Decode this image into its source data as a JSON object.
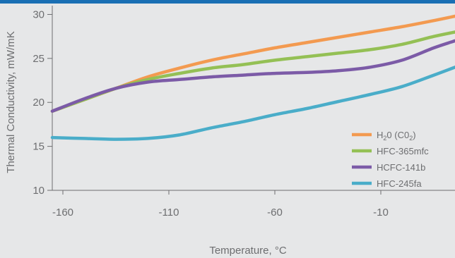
{
  "chart_data": {
    "type": "line",
    "xlabel": "Temperature, °C",
    "ylabel": "Thermal Conductivity, mW/mK",
    "xlim": [
      -165,
      25
    ],
    "ylim": [
      10,
      31
    ],
    "x_ticks": [
      -160,
      -110,
      -60,
      -10
    ],
    "x_tick_labels": [
      "-160",
      "-110",
      "-60",
      "-10"
    ],
    "y_ticks": [
      10,
      15,
      20,
      25,
      30
    ],
    "y_tick_labels": [
      "10",
      "15",
      "20",
      "25",
      "30"
    ],
    "grid": false,
    "legend_position": "bottom-right",
    "series": [
      {
        "name": "H20 (C02)",
        "label_main1": "H",
        "label_sub1": "2",
        "label_main2": "0 (C0",
        "label_sub2": "2",
        "label_main3": ")",
        "color": "#f39a50",
        "points": [
          [
            -165,
            19.0
          ],
          [
            -150,
            20.3
          ],
          [
            -135,
            21.6
          ],
          [
            -120,
            22.9
          ],
          [
            -105,
            23.9
          ],
          [
            -90,
            24.8
          ],
          [
            -75,
            25.5
          ],
          [
            -60,
            26.2
          ],
          [
            -45,
            26.8
          ],
          [
            -30,
            27.4
          ],
          [
            -15,
            28.0
          ],
          [
            0,
            28.6
          ],
          [
            15,
            29.3
          ],
          [
            25,
            29.8
          ]
        ]
      },
      {
        "name": "HFC-365mfc",
        "color": "#94c055",
        "points": [
          [
            -165,
            19.0
          ],
          [
            -150,
            20.3
          ],
          [
            -135,
            21.6
          ],
          [
            -120,
            22.6
          ],
          [
            -105,
            23.3
          ],
          [
            -90,
            23.9
          ],
          [
            -75,
            24.3
          ],
          [
            -60,
            24.8
          ],
          [
            -45,
            25.2
          ],
          [
            -30,
            25.6
          ],
          [
            -15,
            26.0
          ],
          [
            0,
            26.6
          ],
          [
            15,
            27.5
          ],
          [
            25,
            28.0
          ]
        ]
      },
      {
        "name": "HCFC-141b",
        "color": "#7c5ba7",
        "points": [
          [
            -165,
            19.0
          ],
          [
            -150,
            20.4
          ],
          [
            -135,
            21.6
          ],
          [
            -120,
            22.3
          ],
          [
            -105,
            22.6
          ],
          [
            -90,
            22.9
          ],
          [
            -75,
            23.1
          ],
          [
            -60,
            23.3
          ],
          [
            -45,
            23.4
          ],
          [
            -30,
            23.6
          ],
          [
            -15,
            24.0
          ],
          [
            0,
            24.8
          ],
          [
            15,
            26.2
          ],
          [
            25,
            27.0
          ]
        ]
      },
      {
        "name": "HFC-245fa",
        "color": "#4aadc9",
        "points": [
          [
            -165,
            16.0
          ],
          [
            -150,
            15.9
          ],
          [
            -135,
            15.8
          ],
          [
            -120,
            15.9
          ],
          [
            -105,
            16.3
          ],
          [
            -90,
            17.1
          ],
          [
            -75,
            17.8
          ],
          [
            -60,
            18.6
          ],
          [
            -45,
            19.3
          ],
          [
            -30,
            20.1
          ],
          [
            -15,
            20.9
          ],
          [
            0,
            21.8
          ],
          [
            15,
            23.1
          ],
          [
            25,
            24.0
          ]
        ]
      }
    ]
  }
}
